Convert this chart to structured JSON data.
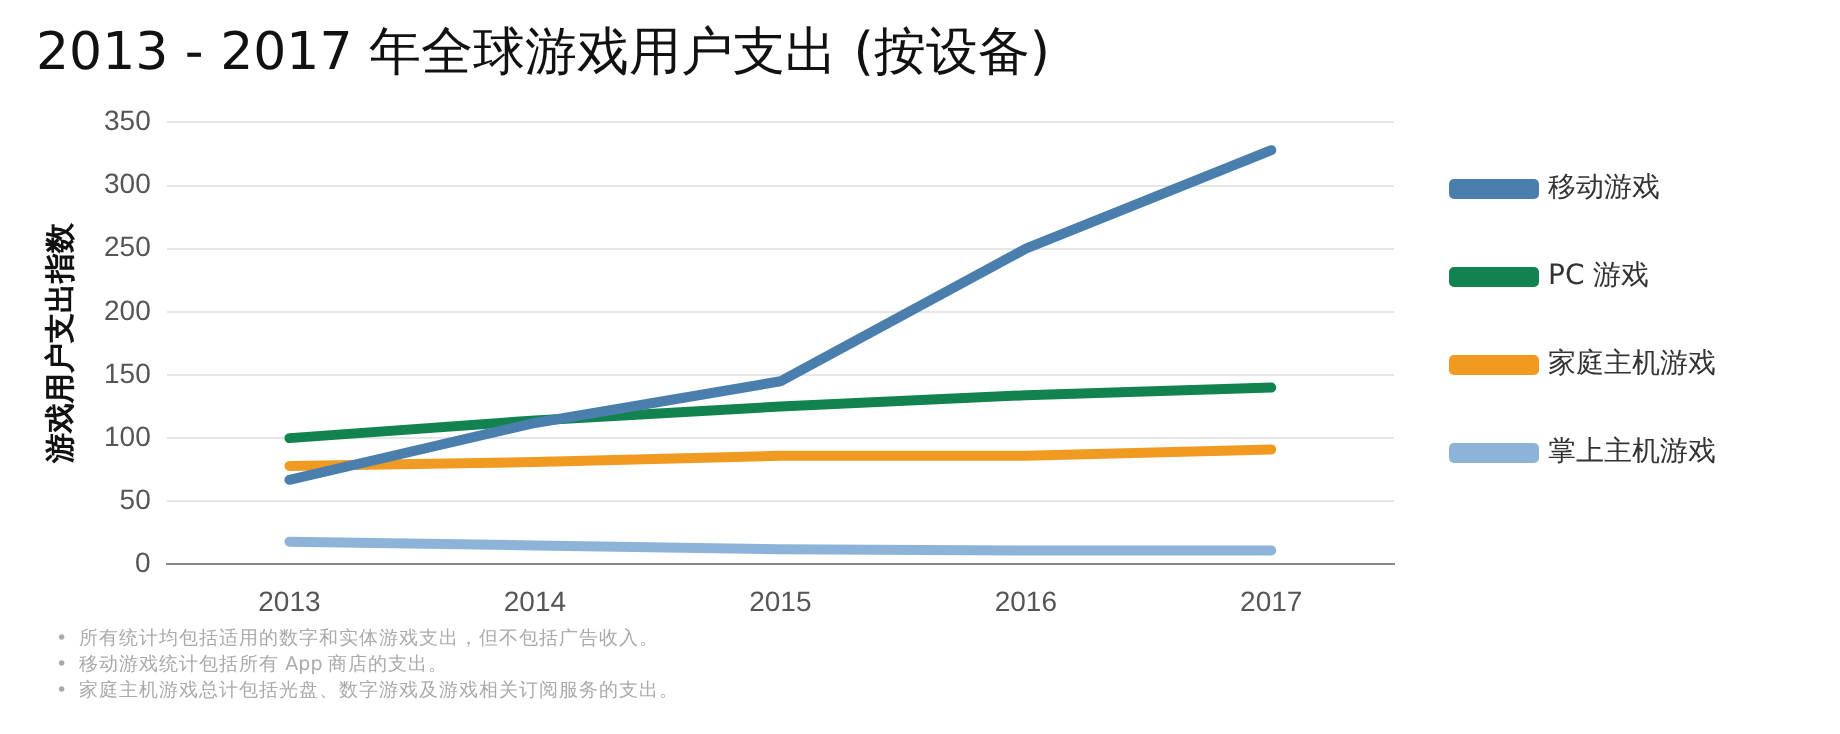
{
  "chart_data": {
    "type": "line",
    "title": "2013 - 2017 年全球游戏用户支出 (按设备)",
    "ylabel": "游戏用户支出指数",
    "categories": [
      "2013",
      "2014",
      "2015",
      "2016",
      "2017"
    ],
    "series": [
      {
        "name": "移动游戏",
        "color": "#4a7fad",
        "values": [
          67,
          112,
          145,
          250,
          328
        ]
      },
      {
        "name": "PC 游戏",
        "color": "#12834f",
        "values": [
          100,
          114,
          125,
          134,
          140
        ]
      },
      {
        "name": "家庭主机游戏",
        "color": "#f09a22",
        "values": [
          78,
          81,
          86,
          86,
          91
        ]
      },
      {
        "name": "掌上主机游戏",
        "color": "#8db4d8",
        "values": [
          18,
          15,
          12,
          11,
          11
        ]
      }
    ],
    "ylim": [
      0,
      350
    ],
    "yticks": [
      0,
      50,
      100,
      150,
      200,
      250,
      300,
      350
    ],
    "grid": "y",
    "legend": "right",
    "marker": "none",
    "line_style": "solid",
    "annotations": [
      "•  所有统计均包括适用的数字和实体游戏支出，但不包括广告收入。",
      "•  移动游戏统计包括所有 App 商店的支出。",
      "•  家庭主机游戏总计包括光盘、数字游戏及游戏相关订阅服务的支出。"
    ]
  }
}
